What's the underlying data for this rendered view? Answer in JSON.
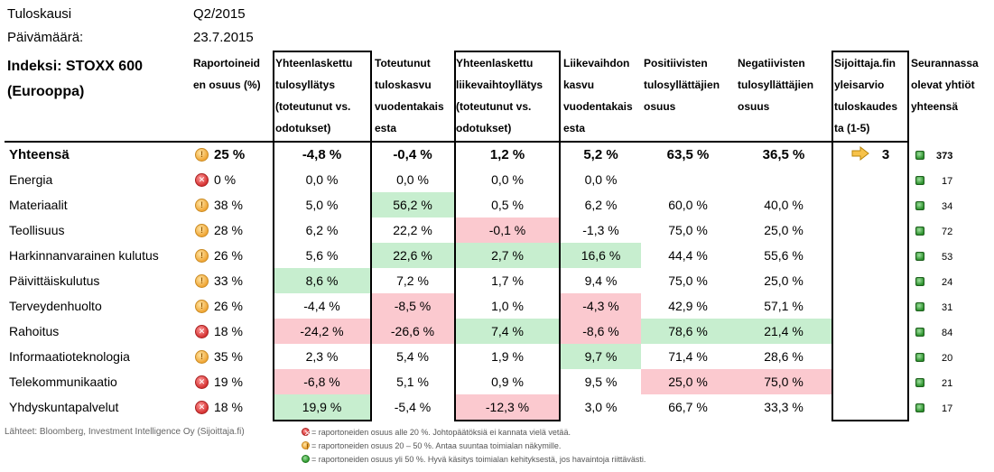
{
  "meta": {
    "period_label": "Tuloskausi",
    "period_value": "Q2/2015",
    "date_label": "Päivämäärä:",
    "date_value": "23.7.2015",
    "index_title_1": "Indeksi: STOXX 600",
    "index_title_2": "(Eurooppa)"
  },
  "headers": {
    "reported_share": [
      "Raportoineid",
      "en osuus (%)"
    ],
    "eps_surprise": [
      "Yhteenlaskettu",
      "tulosyllätys",
      "(toteutunut vs.",
      "odotukset)"
    ],
    "eps_growth": [
      "Toteutunut",
      "tuloskasvu",
      "vuodentakais",
      "esta"
    ],
    "rev_surprise": [
      "Yhteenlaskettu",
      "liikevaihtoyllätys",
      "(toteutunut vs.",
      "odotukset)"
    ],
    "rev_growth": [
      "Liikevaihdon",
      "kasvu",
      "vuodentakais",
      "esta"
    ],
    "positive_share": [
      "Positiivisten",
      "tulosyllättäjien",
      "osuus"
    ],
    "negative_share": [
      "Negatiivisten",
      "tulosyllättäjien",
      "osuus"
    ],
    "rating": [
      "Sijoittaja.fin",
      "yleisarvio",
      "tuloskaudes",
      "ta (1-5)"
    ],
    "companies": [
      "Seurannassa",
      "olevat yhtiöt",
      "yhteensä"
    ]
  },
  "rows": [
    {
      "name": "Yhteensä",
      "status": "yellow",
      "reported": "25 %",
      "eps_surprise": "-4,8 %",
      "eps_growth": "-0,4 %",
      "rev_surprise": "1,2 %",
      "rev_growth": "5,2 %",
      "positive": "63,5 %",
      "negative": "36,5 %",
      "rating": "3",
      "count": "373"
    },
    {
      "name": "Energia",
      "status": "red",
      "reported": "0 %",
      "eps_surprise": "0,0 %",
      "eps_growth": "0,0 %",
      "rev_surprise": "0,0 %",
      "rev_growth": "0,0 %",
      "positive": "",
      "negative": "",
      "rating": "",
      "count": "17"
    },
    {
      "name": "Materiaalit",
      "status": "yellow",
      "reported": "38 %",
      "eps_surprise": "5,0 %",
      "eps_growth": "56,2 %",
      "rev_surprise": "0,5 %",
      "rev_growth": "6,2 %",
      "positive": "60,0 %",
      "negative": "40,0 %",
      "rating": "",
      "count": "34"
    },
    {
      "name": "Teollisuus",
      "status": "yellow",
      "reported": "28 %",
      "eps_surprise": "6,2 %",
      "eps_growth": "22,2 %",
      "rev_surprise": "-0,1 %",
      "rev_growth": "-1,3 %",
      "positive": "75,0 %",
      "negative": "25,0 %",
      "rating": "",
      "count": "72"
    },
    {
      "name": "Harkinnanvarainen kulutus",
      "status": "yellow",
      "reported": "26 %",
      "eps_surprise": "5,6 %",
      "eps_growth": "22,6 %",
      "rev_surprise": "2,7 %",
      "rev_growth": "16,6 %",
      "positive": "44,4 %",
      "negative": "55,6 %",
      "rating": "",
      "count": "53"
    },
    {
      "name": "Päivittäiskulutus",
      "status": "yellow",
      "reported": "33 %",
      "eps_surprise": "8,6 %",
      "eps_growth": "7,2 %",
      "rev_surprise": "1,7 %",
      "rev_growth": "9,4 %",
      "positive": "75,0 %",
      "negative": "25,0 %",
      "rating": "",
      "count": "24"
    },
    {
      "name": "Terveydenhuolto",
      "status": "yellow",
      "reported": "26 %",
      "eps_surprise": "-4,4 %",
      "eps_growth": "-8,5 %",
      "rev_surprise": "1,0 %",
      "rev_growth": "-4,3 %",
      "positive": "42,9 %",
      "negative": "57,1 %",
      "rating": "",
      "count": "31"
    },
    {
      "name": "Rahoitus",
      "status": "red",
      "reported": "18 %",
      "eps_surprise": "-24,2 %",
      "eps_growth": "-26,6 %",
      "rev_surprise": "7,4 %",
      "rev_growth": "-8,6 %",
      "positive": "78,6 %",
      "negative": "21,4 %",
      "rating": "",
      "count": "84"
    },
    {
      "name": "Informaatioteknologia",
      "status": "yellow",
      "reported": "35 %",
      "eps_surprise": "2,3 %",
      "eps_growth": "5,4 %",
      "rev_surprise": "1,9 %",
      "rev_growth": "9,7 %",
      "positive": "71,4 %",
      "negative": "28,6 %",
      "rating": "",
      "count": "20"
    },
    {
      "name": "Telekommunikaatio",
      "status": "red",
      "reported": "19 %",
      "eps_surprise": "-6,8 %",
      "eps_growth": "5,1 %",
      "rev_surprise": "0,9 %",
      "rev_growth": "9,5 %",
      "positive": "25,0 %",
      "negative": "75,0 %",
      "rating": "",
      "count": "21"
    },
    {
      "name": "Yhdyskuntapalvelut",
      "status": "red",
      "reported": "18 %",
      "eps_surprise": "19,9 %",
      "eps_growth": "-5,4 %",
      "rev_surprise": "-12,3 %",
      "rev_growth": "3,0 %",
      "positive": "66,7 %",
      "negative": "33,3 %",
      "rating": "",
      "count": "17"
    }
  ],
  "highlights": {
    "green": [
      "2.eps_growth",
      "4.eps_growth",
      "4.rev_surprise",
      "4.rev_growth",
      "5.eps_surprise",
      "7.rev_surprise",
      "7.positive",
      "7.negative",
      "8.rev_growth",
      "10.eps_surprise"
    ],
    "red": [
      "3.rev_surprise",
      "6.eps_growth",
      "6.rev_growth",
      "7.eps_surprise",
      "7.eps_growth",
      "7.rev_growth",
      "9.eps_surprise",
      "9.positive",
      "9.negative",
      "10.rev_surprise"
    ]
  },
  "colors": {
    "green_highlight": "#c7eecf",
    "red_highlight": "#fbc9cf",
    "status_red": "#d63333",
    "status_yellow": "#f0a636",
    "status_green": "#2f9a2f"
  },
  "footer": {
    "source": "Lähteet: Bloomberg, Investment Intelligence Oy (Sijoittaja.fi)",
    "legend_red": "= raportoneiden osuus alle 20 %. Johtopäätöksiä ei kannata vielä vetää.",
    "legend_yellow": "= raportoneiden osuus 20 – 50 %. Antaa suuntaa toimialan näkymille.",
    "legend_green": "= raportoneiden osuus yli 50 %. Hyvä käsitys toimialan kehityksestä, jos havaintoja riittävästi."
  },
  "icons": {
    "status": [
      "yellow-circle-icon",
      "red-x-icon",
      "green-circle-icon"
    ],
    "rating_arrow": "arrow-right-icon",
    "company_marker": "green-square-icon"
  }
}
